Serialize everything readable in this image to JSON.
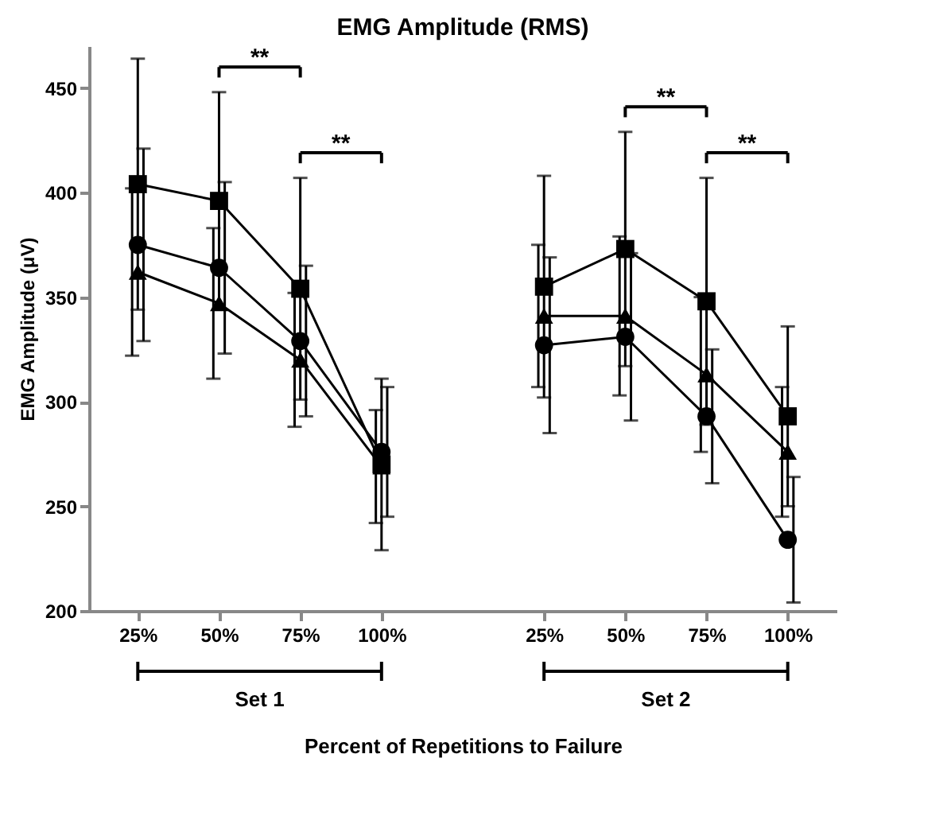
{
  "chart_data": {
    "type": "line",
    "title": "EMG Amplitude (RMS)",
    "ylabel": "EMG Amplitude (μV)",
    "xlabel": "Percent of Repetitions to Failure",
    "categories": [
      "25%",
      "50%",
      "75%",
      "100%",
      null,
      "25%",
      "50%",
      "75%",
      "100%"
    ],
    "ylim": [
      200,
      470
    ],
    "yticks": [
      200,
      250,
      300,
      350,
      400,
      450
    ],
    "grid": false,
    "legend": false,
    "line_style": "solid",
    "series": [
      {
        "color": "#000000",
        "marker": "triangle",
        "values": [
          362,
          347,
          320,
          269,
          null,
          341,
          341,
          313,
          276
        ],
        "errors": [
          40,
          36,
          32,
          27,
          null,
          34,
          38,
          37,
          31
        ]
      },
      {
        "color": "#000000",
        "marker": "square",
        "values": [
          404,
          396,
          354,
          270,
          null,
          355,
          373,
          348,
          293
        ],
        "errors": [
          60,
          52,
          53,
          41,
          null,
          53,
          56,
          59,
          43
        ]
      },
      {
        "color": "#000000",
        "marker": "circle",
        "values": [
          375,
          364,
          329,
          276,
          null,
          327,
          331,
          293,
          234
        ],
        "errors": [
          46,
          41,
          36,
          31,
          null,
          42,
          40,
          32,
          30
        ]
      }
    ],
    "annotations": [
      "**",
      "**",
      "**",
      "**",
      "Set 1",
      "Set 2"
    ]
  }
}
